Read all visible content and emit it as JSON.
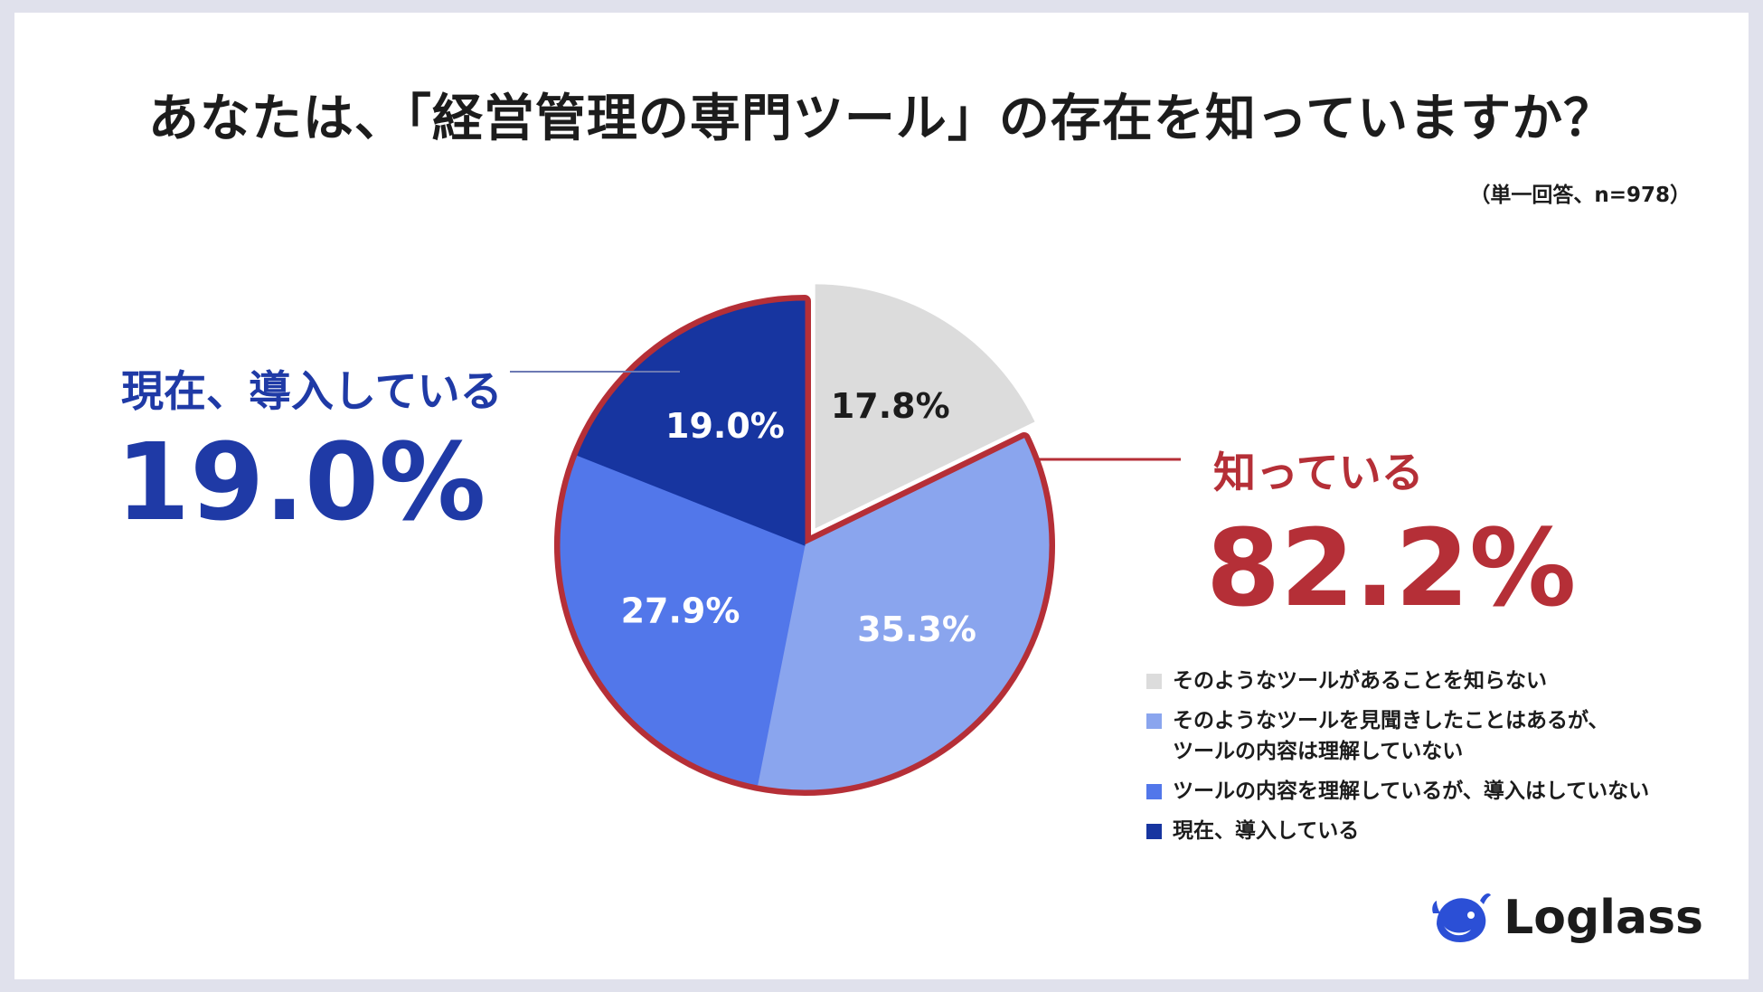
{
  "title": "あなたは、「経営管理の専門ツール」の存在を知っていますか？",
  "note": "（単一回答、n=978）",
  "callouts": {
    "left_label": "現在、導入している",
    "left_value": "19.0%",
    "right_label": "知っている",
    "right_value": "82.2%"
  },
  "chart_data": {
    "type": "pie",
    "slices": [
      {
        "label": "そのようなツールがあることを知らない",
        "value": 17.8,
        "display": "17.8%",
        "color": "#dcdcdc",
        "label_color": "#1c1c1c"
      },
      {
        "label": "そのようなツールを見聞きしたことはあるが、\nツールの内容は理解していない",
        "value": 35.3,
        "display": "35.3%",
        "color": "#8aa5ee",
        "label_color": "#ffffff"
      },
      {
        "label": "ツールの内容を理解しているが、導入はしていない",
        "value": 27.9,
        "display": "27.9%",
        "color": "#5277ea",
        "label_color": "#ffffff"
      },
      {
        "label": "現在、導入している",
        "value": 19.0,
        "display": "19.0%",
        "color": "#1735a0",
        "label_color": "#ffffff"
      }
    ],
    "highlight_color": "#b52f37",
    "callout_left_color": "#1f3aa6"
  },
  "logo": {
    "text": "Loglass",
    "icon": "whale-icon",
    "color": "#2b4fd6"
  }
}
